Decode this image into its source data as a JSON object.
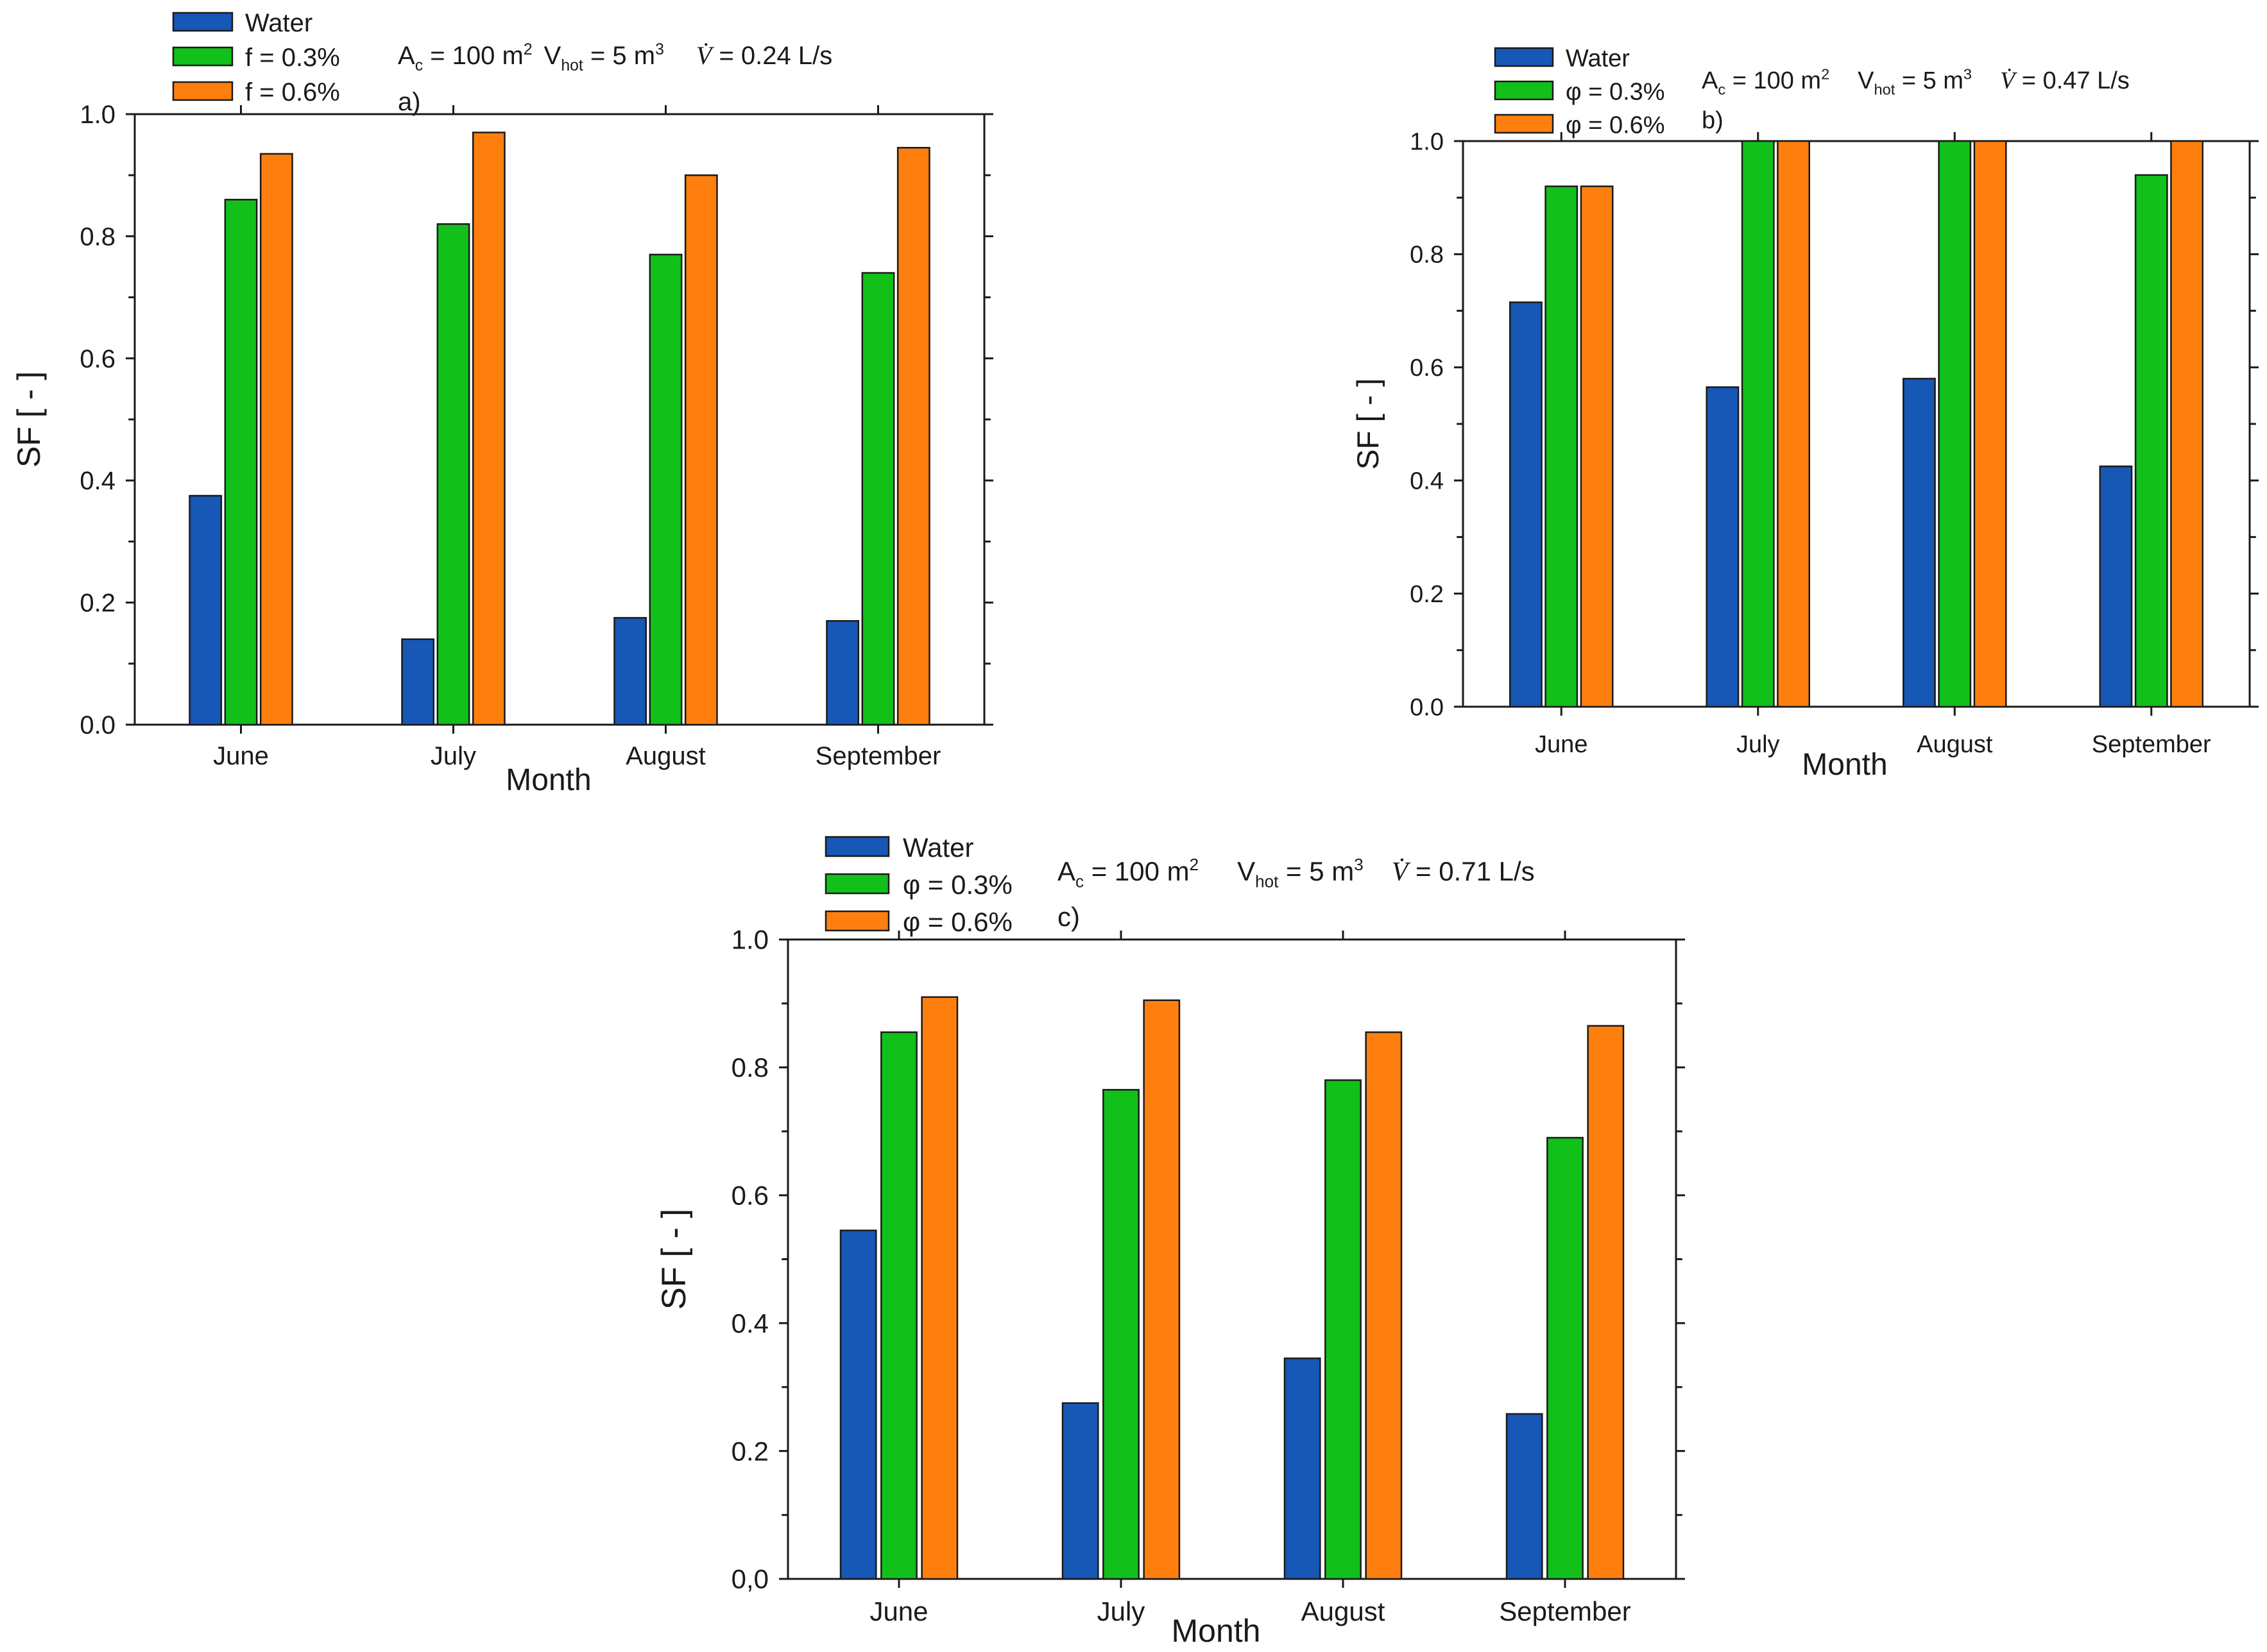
{
  "colors": {
    "water": "#1757b5",
    "phi03": "#12c01a",
    "phi06": "#ff7f0e",
    "axis": "#1a1a1a"
  },
  "chart_data": [
    {
      "type": "bar",
      "panel": "a)",
      "params": {
        "ac_sym": "A",
        "ac_sub": "c",
        "ac_val": " = 100 m",
        "ac_sup": "2",
        "v_sym": "V",
        "v_sub": "hot",
        "v_val": " = 5 m",
        "v_sup": "3",
        "flow_sym": "V̇",
        "flow_val": " = 0.24 L/s"
      },
      "xlabel": "Month",
      "ylabel": "SF [ - ]",
      "ylim": [
        0,
        1.0
      ],
      "ytick_labels": [
        "0.0",
        "0.2",
        "0.4",
        "0.6",
        "0.8",
        "1.0"
      ],
      "categories": [
        "June",
        "July",
        "August",
        "September"
      ],
      "series": [
        {
          "name": "Water",
          "values": [
            0.375,
            0.14,
            0.175,
            0.17
          ]
        },
        {
          "name": "f = 0.3%",
          "values": [
            0.86,
            0.82,
            0.77,
            0.74
          ]
        },
        {
          "name": "f = 0.6%",
          "values": [
            0.935,
            0.97,
            0.9,
            0.945
          ]
        }
      ]
    },
    {
      "type": "bar",
      "panel": "b)",
      "params": {
        "ac_sym": "A",
        "ac_sub": "c",
        "ac_val": " = 100 m",
        "ac_sup": "2",
        "v_sym": "V",
        "v_sub": "hot",
        "v_val": " = 5 m",
        "v_sup": "3",
        "flow_sym": "V̇",
        "flow_val": " = 0.47 L/s"
      },
      "xlabel": "Month",
      "ylabel": "SF [ - ]",
      "ylim": [
        0,
        1.0
      ],
      "ytick_labels": [
        "0.0",
        "0.2",
        "0.4",
        "0.6",
        "0.8",
        "1.0"
      ],
      "categories": [
        "June",
        "July",
        "August",
        "September"
      ],
      "series": [
        {
          "name": "Water",
          "values": [
            0.715,
            0.565,
            0.58,
            0.425
          ]
        },
        {
          "name": "φ = 0.3%",
          "values": [
            0.92,
            1.0,
            1.0,
            0.94
          ]
        },
        {
          "name": "φ = 0.6%",
          "values": [
            0.92,
            1.0,
            1.0,
            1.0
          ]
        }
      ]
    },
    {
      "type": "bar",
      "panel": "c)",
      "params": {
        "ac_sym": "A",
        "ac_sub": "c",
        "ac_val": " = 100 m",
        "ac_sup": "2",
        "v_sym": "V",
        "v_sub": "hot",
        "v_val": " = 5 m",
        "v_sup": "3",
        "flow_sym": "V̇",
        "flow_val": " = 0.71 L/s"
      },
      "xlabel": "Month",
      "ylabel": "SF [ - ]",
      "ylim": [
        0,
        1.0
      ],
      "ytick_labels": [
        "0,0",
        "0.2",
        "0.4",
        "0.6",
        "0.8",
        "1.0"
      ],
      "categories": [
        "June",
        "July",
        "August",
        "September"
      ],
      "series": [
        {
          "name": "Water",
          "values": [
            0.545,
            0.275,
            0.345,
            0.258
          ]
        },
        {
          "name": "φ = 0.3%",
          "values": [
            0.855,
            0.765,
            0.78,
            0.69
          ]
        },
        {
          "name": "φ = 0.6%",
          "values": [
            0.91,
            0.905,
            0.855,
            0.865
          ]
        }
      ]
    }
  ]
}
